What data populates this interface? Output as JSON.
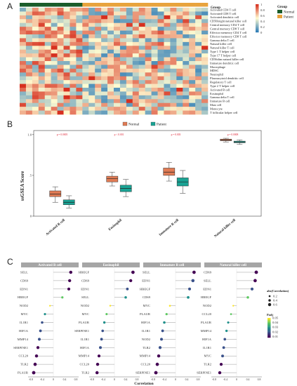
{
  "panels": {
    "a": "A",
    "b": "B",
    "c": "C"
  },
  "heatmap": {
    "rows": [
      "Activated CD4 T cell",
      "Activated CD8 T cell",
      "Activated dendritic cell",
      "CD56bright natural killer cell",
      "Central memory CD4 T cell",
      "Central memory CD8 T cell",
      "Effector memeory CD4 T cell",
      "Effector memeory CD8 T cell",
      "Gamma delta T cell",
      "Natural killer cell",
      "Natural killer T cell",
      "Type 1 T helper cell",
      "Type 17 T helper cell",
      "CD56dim natural killer cell",
      "Immature dendritic cell",
      "Macrophage",
      "MDSC",
      "Neutrophil",
      "Plasmacytoid dendritic cell",
      "Regulatory T cell",
      "Type 2 T helper cell",
      "Activated B cell",
      "Eosinophil",
      "Gamma delta T cell",
      "Immature B cell",
      "Mast cell",
      "Monocyte",
      "T follicular helper cell"
    ],
    "n_normal": 10,
    "n_patient": 20,
    "scale_ticks": [
      "1",
      "0.8",
      "0.6",
      "0.4",
      "0.2",
      "0"
    ],
    "legend": {
      "title": "Group",
      "normal": "Normal",
      "patient": "Patient",
      "group_label": "Group"
    },
    "colors": {
      "normal": "#1a5c2a",
      "patient": "#e8a33d",
      "high": "#d7301f",
      "mid": "#fffbd0",
      "low": "#2c7bb6"
    }
  },
  "chart_data": [
    {
      "type": "box",
      "ylabel": "ssGSEA Score",
      "ylim": [
        0.0,
        1.05
      ],
      "yticks": [
        0.0,
        0.5,
        1.0
      ],
      "ytick_labels": [
        "0",
        ".5",
        "1.0"
      ],
      "legend": [
        {
          "name": "Normal",
          "color": "#e07b54"
        },
        {
          "name": "Patient",
          "color": "#1aa394"
        }
      ],
      "categories": [
        "Activated B cell",
        "Eosinophil",
        "Immature B cell",
        "Natural killer cell"
      ],
      "pvalues": [
        "p = 0.0005",
        "p < 0.001",
        "p = 0.003",
        "p = 0.0008"
      ],
      "series": [
        {
          "name": "Normal",
          "boxes": [
            {
              "min": 0.17,
              "q1": 0.24,
              "median": 0.27,
              "q3": 0.31,
              "max": 0.36
            },
            {
              "min": 0.37,
              "q1": 0.42,
              "median": 0.46,
              "q3": 0.49,
              "max": 0.54
            },
            {
              "min": 0.43,
              "q1": 0.5,
              "median": 0.54,
              "q3": 0.59,
              "max": 0.66
            },
            {
              "min": 0.91,
              "q1": 0.925,
              "median": 0.935,
              "q3": 0.945,
              "max": 0.955
            }
          ]
        },
        {
          "name": "Patient",
          "boxes": [
            {
              "min": 0.1,
              "q1": 0.14,
              "median": 0.17,
              "q3": 0.2,
              "max": 0.25
            },
            {
              "min": 0.24,
              "q1": 0.3,
              "median": 0.34,
              "q3": 0.38,
              "max": 0.45
            },
            {
              "min": 0.28,
              "q1": 0.37,
              "median": 0.42,
              "q3": 0.47,
              "max": 0.56
            },
            {
              "min": 0.88,
              "q1": 0.9,
              "median": 0.91,
              "q3": 0.92,
              "max": 0.935
            }
          ]
        }
      ]
    },
    {
      "type": "scatter",
      "subtype": "lollipop",
      "xlabel": "Correlation",
      "xlim": [
        -0.85,
        0.85
      ],
      "xticks": [
        -0.8,
        -0.4,
        0.0,
        0.4,
        0.8
      ],
      "xtick_labels": [
        "-0.8",
        "-0.4",
        "0",
        "0.4",
        "0.8"
      ],
      "legend_size": {
        "title": "abs(Correlation)",
        "labels": [
          "0.2",
          "0.4",
          "0.6"
        ]
      },
      "legend_color": {
        "title": "Padj",
        "labels": [
          "0.05",
          "0.04",
          "0.03",
          "0.02",
          "0.01"
        ]
      },
      "facets": [
        {
          "title": "Activated B cell",
          "genes": [
            "SELL",
            "CD69",
            "EDN1",
            "HBEGF",
            "NOD2",
            "MYC",
            "IL1R1",
            "HIF1A",
            "MMP14",
            "SERPINE1",
            "CCL20",
            "TLR2",
            "PLAUR"
          ],
          "r": [
            0.62,
            0.58,
            0.55,
            0.32,
            -0.12,
            -0.3,
            -0.4,
            -0.46,
            -0.5,
            -0.55,
            -0.6,
            -0.65,
            -0.7
          ],
          "p": [
            0.01,
            0.01,
            0.01,
            0.04,
            0.05,
            0.03,
            0.02,
            0.02,
            0.02,
            0.01,
            0.01,
            0.01,
            0.01
          ]
        },
        {
          "title": "Eosinophil",
          "genes": [
            "HBEGF",
            "CD69",
            "EDN1",
            "SELL",
            "NOD2",
            "MYC",
            "PLAUR",
            "SERPINE1",
            "IL1R1",
            "HIF1A",
            "MMP14",
            "CCL20",
            "TLR2"
          ],
          "r": [
            0.66,
            0.58,
            0.46,
            0.4,
            -0.15,
            -0.28,
            -0.36,
            -0.42,
            -0.46,
            -0.5,
            -0.55,
            -0.6,
            -0.62
          ],
          "p": [
            0.01,
            0.01,
            0.02,
            0.03,
            0.05,
            0.04,
            0.03,
            0.02,
            0.02,
            0.02,
            0.01,
            0.01,
            0.01
          ]
        },
        {
          "title": "Immature B cell",
          "genes": [
            "SELL",
            "EDN1",
            "HBEGF",
            "CD69",
            "MYC",
            "PLAUR",
            "HIF1A",
            "IL1R1",
            "NOD2",
            "TLR2",
            "MMP14",
            "CCL20",
            "SERPINE1"
          ],
          "r": [
            0.66,
            0.62,
            0.5,
            0.45,
            -0.2,
            -0.32,
            -0.4,
            -0.46,
            -0.5,
            -0.55,
            -0.6,
            -0.65,
            -0.7
          ],
          "p": [
            0.01,
            0.02,
            0.02,
            0.03,
            0.05,
            0.04,
            0.03,
            0.02,
            0.02,
            0.02,
            0.01,
            0.01,
            0.01
          ]
        },
        {
          "title": "Natural killer cell",
          "genes": [
            "CD69",
            "SELL",
            "EDN1",
            "HBEGF",
            "NOD2",
            "CCL20",
            "PLAUR",
            "MMP14",
            "HIF1A",
            "IL1R1",
            "MYC",
            "TLR2",
            "SERPINE1"
          ],
          "r": [
            0.7,
            0.66,
            0.55,
            0.4,
            -0.12,
            -0.2,
            -0.3,
            -0.36,
            -0.42,
            -0.46,
            -0.5,
            -0.55,
            -0.6
          ],
          "p": [
            0.01,
            0.01,
            0.02,
            0.04,
            0.05,
            0.04,
            0.03,
            0.03,
            0.02,
            0.02,
            0.02,
            0.01,
            0.01
          ]
        }
      ]
    }
  ]
}
